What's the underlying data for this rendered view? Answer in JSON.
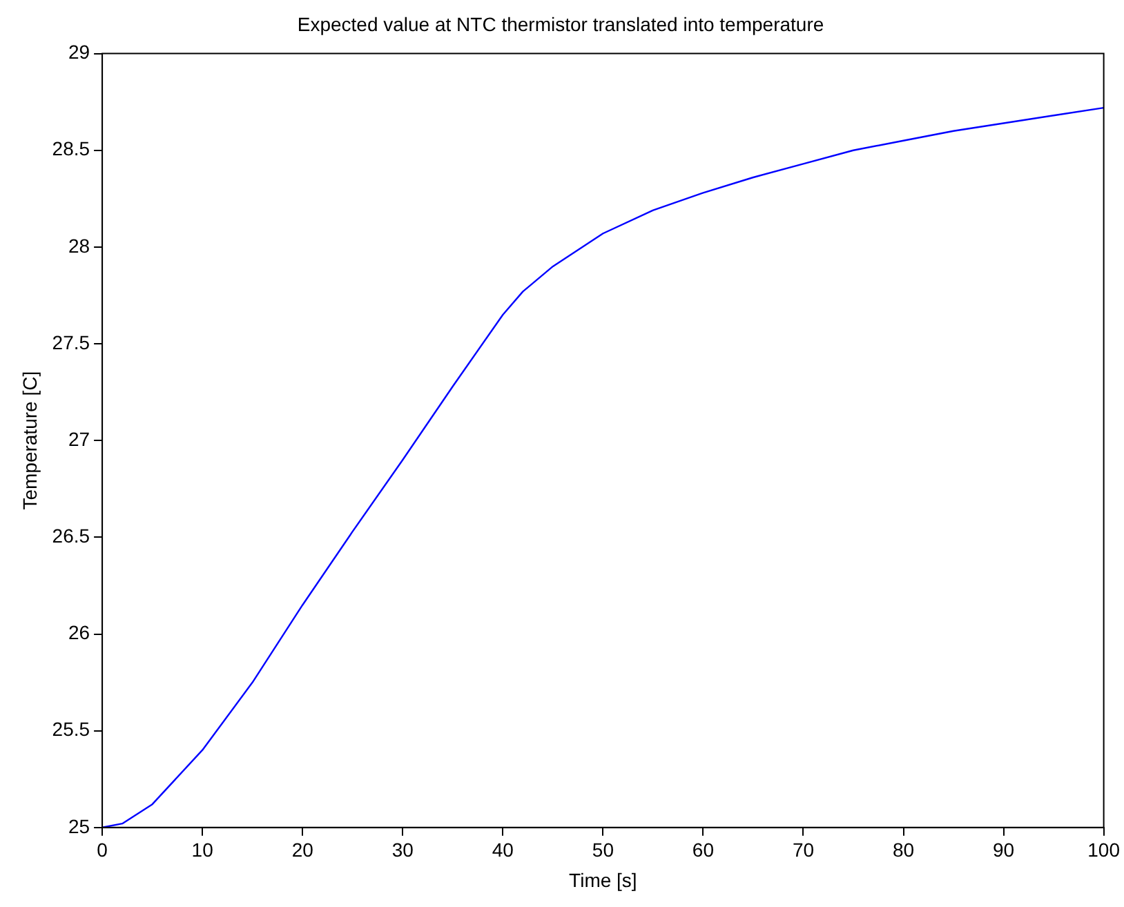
{
  "chart_data": {
    "type": "line",
    "title": "Expected value at NTC thermistor translated into temperature",
    "xlabel": "Time [s]",
    "ylabel": "Temperature [C]",
    "x": [
      0,
      2,
      5,
      10,
      15,
      20,
      25,
      30,
      35,
      40,
      42,
      45,
      50,
      55,
      60,
      65,
      70,
      75,
      80,
      85,
      90,
      95,
      100
    ],
    "series": [
      {
        "color": "#0000ff",
        "values": [
          25,
          25.02,
          25.12,
          25.4,
          25.75,
          26.15,
          26.53,
          26.9,
          27.28,
          27.65,
          27.77,
          27.9,
          28.07,
          28.19,
          28.28,
          28.36,
          28.43,
          28.5,
          28.55,
          28.6,
          28.64,
          28.68,
          28.72
        ]
      }
    ],
    "xlim": [
      0,
      100
    ],
    "xticks": [
      0,
      10,
      20,
      30,
      40,
      50,
      60,
      70,
      80,
      90,
      100
    ],
    "ylim": [
      25,
      29
    ],
    "yticks": [
      25,
      25.5,
      26,
      26.5,
      27,
      27.5,
      28,
      28.5,
      29
    ],
    "grid": false,
    "legend": false,
    "marker": "none",
    "line_style": "solid"
  }
}
